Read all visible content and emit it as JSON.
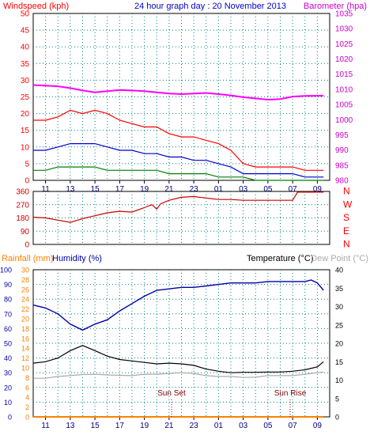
{
  "chart_data": [
    {
      "type": "line",
      "title": "24 hour graph day : 20 November 2013",
      "left_axis_label": "Windspeed (kph)",
      "right_axis_label": "Barometer (hpa)",
      "ylim_left": [
        0,
        50
      ],
      "ylim_right": [
        980,
        1035
      ],
      "left_ticks": [
        "0",
        "5",
        "10",
        "15",
        "20",
        "25",
        "30",
        "35",
        "40",
        "45",
        "50"
      ],
      "right_ticks": [
        "980",
        "985",
        "990",
        "995",
        "1000",
        "1005",
        "1010",
        "1015",
        "1020",
        "1025",
        "1030",
        "1035"
      ],
      "x_ticks": [
        "11",
        "13",
        "15",
        "17",
        "19",
        "21",
        "23",
        "01",
        "03",
        "05",
        "07",
        "09"
      ],
      "grid": true,
      "colors": {
        "gust": "#ff0000",
        "average": "#0000cc",
        "minimum": "#008000",
        "barometer": "#ff00ff"
      },
      "series": [
        {
          "color": "#ff00ff",
          "axis": "right",
          "x": [
            10,
            11,
            12,
            13,
            14,
            15,
            16,
            17,
            18,
            19,
            20,
            21,
            22,
            23,
            0,
            1,
            2,
            3,
            4,
            5,
            6,
            7,
            8,
            9.5
          ],
          "values": [
            1011.4,
            1011.2,
            1011.0,
            1010.4,
            1009.6,
            1009.0,
            1009.4,
            1009.8,
            1009.6,
            1009.4,
            1009.0,
            1008.6,
            1008.4,
            1008.6,
            1008.8,
            1008.4,
            1008.0,
            1007.4,
            1007.0,
            1006.6,
            1006.8,
            1007.6,
            1007.8,
            1007.9
          ]
        },
        {
          "color": "#ff0000",
          "axis": "left",
          "x": [
            10,
            11,
            12,
            13,
            14,
            15,
            16,
            17,
            18,
            19,
            20,
            21,
            22,
            23,
            0,
            1,
            2,
            3,
            4,
            5,
            6,
            7,
            8,
            9.5
          ],
          "values": [
            18,
            18,
            19,
            21,
            20,
            21,
            20,
            18,
            17,
            16,
            16,
            14,
            13,
            13,
            12,
            11,
            9,
            5,
            4,
            4,
            4,
            4,
            3,
            3
          ]
        },
        {
          "color": "#0000cc",
          "axis": "left",
          "x": [
            10,
            11,
            12,
            13,
            14,
            15,
            16,
            17,
            18,
            19,
            20,
            21,
            22,
            23,
            0,
            1,
            2,
            3,
            4,
            5,
            6,
            7,
            8,
            9.5
          ],
          "values": [
            9,
            9,
            10,
            11,
            11,
            11,
            10,
            9,
            9,
            8,
            8,
            7,
            7,
            6,
            6,
            5,
            4,
            2,
            2,
            2,
            2,
            2,
            1,
            1
          ]
        },
        {
          "color": "#008000",
          "axis": "left",
          "x": [
            10,
            11,
            12,
            13,
            14,
            15,
            16,
            17,
            18,
            19,
            20,
            21,
            22,
            23,
            0,
            1,
            2,
            3,
            4,
            5,
            6,
            7,
            8,
            9.5
          ],
          "values": [
            3,
            3,
            4,
            4,
            4,
            4,
            3,
            3,
            3,
            3,
            3,
            2,
            2,
            2,
            2,
            1,
            1,
            1,
            0,
            0,
            0,
            0,
            0,
            0
          ]
        }
      ]
    },
    {
      "type": "line",
      "ylim": [
        0,
        360
      ],
      "left_ticks": [
        "0",
        "90",
        "180",
        "270",
        "360"
      ],
      "right_labels": [
        "N",
        "W",
        "S",
        "E",
        "N"
      ],
      "x_ticks": [
        "11",
        "13",
        "15",
        "17",
        "19",
        "21",
        "23",
        "01",
        "03",
        "05",
        "07",
        "09"
      ],
      "grid": true,
      "colors": {
        "direction": "#cc0000"
      },
      "series": [
        {
          "color": "#cc0000",
          "x": [
            10,
            11,
            12,
            13,
            14,
            15,
            16,
            17,
            18,
            19,
            19.6,
            20,
            20.3,
            21,
            22,
            23,
            0,
            1,
            2,
            3,
            4,
            5,
            6,
            7,
            7.4,
            8,
            9.5
          ],
          "values": [
            185,
            180,
            165,
            150,
            175,
            195,
            215,
            225,
            220,
            250,
            270,
            240,
            275,
            300,
            320,
            325,
            315,
            305,
            305,
            300,
            300,
            300,
            300,
            300,
            355,
            355,
            355
          ]
        }
      ]
    },
    {
      "type": "line",
      "rainfall_label": "Rainfall (mm)",
      "humidity_label": "Humidity (%)",
      "temperature_label": "Temperature (°C)",
      "dewpoint_label": "Dew Point (°C)",
      "humidity_ticks": [
        "0",
        "10",
        "20",
        "30",
        "40",
        "50",
        "60",
        "70",
        "80",
        "90",
        "100"
      ],
      "rainfall_ticks": [
        "0",
        "2",
        "4",
        "6",
        "8",
        "10",
        "12",
        "14",
        "16",
        "18",
        "20",
        "22",
        "24",
        "26",
        "28",
        "30"
      ],
      "temperature_ticks": [
        "0",
        "5",
        "10",
        "15",
        "20",
        "25",
        "30",
        "35",
        "40"
      ],
      "ylim_humidity": [
        0,
        100
      ],
      "ylim_temperature": [
        0,
        40
      ],
      "x_ticks": [
        "11",
        "13",
        "15",
        "17",
        "19",
        "21",
        "23",
        "01",
        "03",
        "05",
        "07",
        "09"
      ],
      "annotations": [
        "Sun Set",
        "Sun Rise"
      ],
      "grid": true,
      "colors": {
        "humidity": "#0000aa",
        "temperature": "#000000",
        "dewpoint": "#aaaaaa",
        "rainfall": "#ff8000"
      },
      "series": [
        {
          "color": "#0000aa",
          "axis": "humidity",
          "x": [
            10,
            11,
            12,
            13,
            14,
            15,
            16,
            17,
            18,
            19,
            20,
            21,
            22,
            23,
            0,
            1,
            2,
            3,
            4,
            5,
            6,
            7,
            8,
            8.5,
            9,
            9.5
          ],
          "values": [
            76,
            74,
            70,
            63,
            59,
            63,
            66,
            72,
            77,
            82,
            86,
            87,
            88,
            88,
            89,
            90,
            91,
            91,
            91,
            92,
            92,
            92,
            92,
            93,
            91,
            86
          ]
        },
        {
          "color": "#000000",
          "axis": "temperature",
          "x": [
            10,
            11,
            12,
            13,
            14,
            15,
            16,
            17,
            18,
            19,
            20,
            21,
            22,
            23,
            0,
            1,
            2,
            3,
            4,
            5,
            6,
            7,
            8,
            9,
            9.5
          ],
          "values": [
            14.6,
            15,
            16,
            18,
            19.4,
            18,
            16.5,
            15.6,
            15.2,
            14.8,
            14.4,
            14.6,
            14.4,
            14,
            13,
            12.4,
            12.0,
            12.1,
            12.1,
            12.2,
            12.2,
            12.4,
            12.8,
            13.6,
            15
          ]
        },
        {
          "color": "#aaaaaa",
          "axis": "temperature",
          "x": [
            10,
            11,
            12,
            13,
            14,
            15,
            16,
            17,
            18,
            19,
            20,
            21,
            22,
            23,
            0,
            1,
            2,
            3,
            4,
            5,
            6,
            7,
            8,
            9,
            9.5
          ],
          "values": [
            10.5,
            10.5,
            11,
            11.2,
            11.5,
            11.6,
            11.4,
            11.3,
            11.2,
            11.6,
            11.6,
            11.8,
            12,
            11.8,
            11.2,
            11,
            11,
            10.7,
            10.8,
            11.2,
            11.2,
            11.2,
            11.6,
            12,
            12.2
          ]
        },
        {
          "color": "#ff8000",
          "axis": "rainfall",
          "x": [
            10,
            9.5
          ],
          "values": [
            0,
            0
          ]
        }
      ]
    }
  ]
}
